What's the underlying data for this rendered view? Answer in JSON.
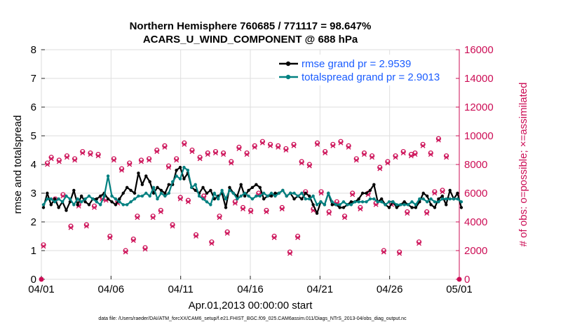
{
  "chart_data": {
    "type": "line",
    "title_line1": "Northern Hemisphere 760685 / 771117 = 98.647%",
    "title_line2": "ACARS_U_WIND_COMPONENT @ 688 hPa",
    "xlabel": "Apr.01,2013 00:00:00 start",
    "ylabel_left": "rmse and totalspread",
    "ylabel_right": "# of obs: o=possible; ×=assimilated",
    "footnote": "data file: /Users/raeder/DAI/ATM_forcXX/CAM6_setup/f.e21.FHIST_BGC.f09_025.CAM6assim.011/Diags_NTrS_2013-04/obs_diag_output.nc",
    "xlim": [
      0,
      30
    ],
    "ylim_left": [
      0,
      8
    ],
    "ylim_right": [
      0,
      16000
    ],
    "x_ticks": [
      0,
      5,
      10,
      15,
      20,
      25,
      30
    ],
    "x_tick_labels": [
      "04/01",
      "04/06",
      "04/11",
      "04/16",
      "04/21",
      "04/26",
      "05/01"
    ],
    "y_ticks_left": [
      "0",
      "1",
      "2",
      "3",
      "4",
      "5",
      "6",
      "7",
      "8"
    ],
    "y_ticks_right": [
      "0",
      "2000",
      "4000",
      "6000",
      "8000",
      "10000",
      "12000",
      "14000",
      "16000"
    ],
    "colors": {
      "rmse": "#000000",
      "spread": "#008080",
      "obs": "#cc0d55",
      "legend_text": "#1a5cff"
    },
    "series": [
      {
        "name": "rmse grand pr = 2.9539",
        "axis": "left",
        "values": [
          2.5,
          3.0,
          2.6,
          2.8,
          2.5,
          2.7,
          2.4,
          2.7,
          3.1,
          2.6,
          2.9,
          2.7,
          2.6,
          2.8,
          2.8,
          2.9,
          3.0,
          2.8,
          2.7,
          2.6,
          2.8,
          3.0,
          3.2,
          3.1,
          3.0,
          3.7,
          3.3,
          3.6,
          3.4,
          3.0,
          3.2,
          3.1,
          3.0,
          3.3,
          3.3,
          3.8,
          3.9,
          3.5,
          3.7,
          3.2,
          3.1,
          3.0,
          3.2,
          3.0,
          3.1,
          2.8,
          2.9,
          3.0,
          2.5,
          3.2,
          3.0,
          2.9,
          3.3,
          2.9,
          3.1,
          3.2,
          3.3,
          3.2,
          2.8,
          2.9,
          2.9,
          3.0,
          3.0,
          3.1,
          2.9,
          3.0,
          2.8,
          2.9,
          2.8,
          3.0,
          2.9,
          2.6,
          2.3,
          2.7,
          2.6,
          3.0,
          2.6,
          2.6,
          2.5,
          2.5,
          2.6,
          2.7,
          2.7,
          2.8,
          3.0,
          3.0,
          3.1,
          3.3,
          2.7,
          2.8,
          2.6,
          2.5,
          2.7,
          2.5,
          2.6,
          2.7,
          2.6,
          2.5,
          2.5,
          2.7,
          3.0,
          2.9,
          2.6,
          2.5,
          2.8,
          2.9,
          2.6,
          3.1,
          2.8,
          3.0,
          2.5
        ],
        "x_start": 0.15,
        "x_step": 0.2727
      },
      {
        "name": "totalspread grand pr = 2.9013",
        "axis": "left",
        "values": [
          2.6,
          2.8,
          2.8,
          2.7,
          2.8,
          2.7,
          2.9,
          2.8,
          2.6,
          2.8,
          2.7,
          2.8,
          2.9,
          2.8,
          2.7,
          2.6,
          2.9,
          3.6,
          2.9,
          2.8,
          2.7,
          2.6,
          2.6,
          2.7,
          2.8,
          2.9,
          2.9,
          3.0,
          2.9,
          3.2,
          2.8,
          3.0,
          2.9,
          3.0,
          3.4,
          3.6,
          3.5,
          3.9,
          3.8,
          3.2,
          3.3,
          2.9,
          2.8,
          2.7,
          2.6,
          3.0,
          2.8,
          3.1,
          2.8,
          3.1,
          3.0,
          2.8,
          2.9,
          3.0,
          2.9,
          2.8,
          2.9,
          2.9,
          3.0,
          2.9,
          3.0,
          2.9,
          3.0,
          3.1,
          2.9,
          3.0,
          3.0,
          2.9,
          3.0,
          2.8,
          2.8,
          2.9,
          2.6,
          2.7,
          2.6,
          3.0,
          2.7,
          2.6,
          2.6,
          2.7,
          2.6,
          2.6,
          2.7,
          2.7,
          2.7,
          2.7,
          2.8,
          2.8,
          2.7,
          2.7,
          2.6,
          2.7,
          2.7,
          2.6,
          2.6,
          2.6,
          2.6,
          2.7,
          2.6,
          2.8,
          2.8,
          2.7,
          2.8,
          2.7,
          2.7,
          2.8,
          2.8,
          2.8,
          2.8,
          2.8,
          2.7
        ],
        "x_start": 0.15,
        "x_step": 0.2727
      },
      {
        "name": "obs possible/assimilated",
        "axis": "right",
        "values": [
          2400,
          8100,
          8500,
          5600,
          8300,
          5900,
          8600,
          3700,
          8400,
          5200,
          8900,
          3800,
          8800,
          5100,
          8700,
          5700,
          5600,
          3000,
          8400,
          5400,
          7700,
          2000,
          8100,
          2800,
          4400,
          8300,
          2200,
          8400,
          4400,
          9000,
          4800,
          9300,
          7900,
          3800,
          8400,
          5700,
          9500,
          5500,
          9000,
          3100,
          8500,
          5800,
          8800,
          2600,
          8900,
          4400,
          8800,
          3300,
          8200,
          5400,
          9200,
          5000,
          8800,
          4800,
          9300,
          6000,
          9600,
          4800,
          9400,
          3000,
          9300,
          5000,
          9100,
          1900,
          9400,
          3000,
          8200,
          6100,
          8000,
          4900,
          9500,
          6100,
          8900,
          4700,
          9400,
          5400,
          9600,
          4400,
          9300,
          6000,
          8400,
          5000,
          8800,
          6000,
          8600,
          5300,
          7800,
          2000,
          8200,
          5300,
          8600,
          1900,
          8900,
          4700,
          8700,
          8800,
          2600,
          9400,
          4700,
          8800,
          6100,
          9800,
          6200,
          8600
        ],
        "x_start": 0.15,
        "x_step": 0.2808
      }
    ]
  },
  "legend": {
    "rmse_label": "rmse grand pr = 2.9539",
    "spread_label": "totalspread grand pr = 2.9013"
  }
}
